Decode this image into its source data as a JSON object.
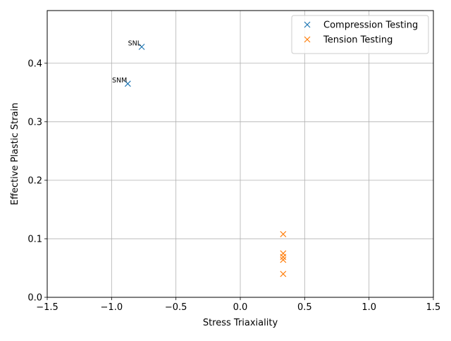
{
  "chart_data": {
    "type": "scatter",
    "xlabel": "Stress Triaxiality",
    "ylabel": "Effective Plastic Strain",
    "xlim": [
      -1.5,
      1.5
    ],
    "ylim": [
      0,
      0.49
    ],
    "xticks": [
      -1.5,
      -1.0,
      -0.5,
      0.0,
      0.5,
      1.0,
      1.5
    ],
    "xtick_labels": [
      "−1.5",
      "−1.0",
      "−0.5",
      "0.0",
      "0.5",
      "1.0",
      "1.5"
    ],
    "yticks": [
      0.0,
      0.1,
      0.2,
      0.3,
      0.4
    ],
    "ytick_labels": [
      "0.0",
      "0.1",
      "0.2",
      "0.3",
      "0.4"
    ],
    "grid": true,
    "legend_position": "top-right",
    "marker": "x",
    "series": [
      {
        "name": "Compression Testing",
        "color": "#1f77b4",
        "points": [
          {
            "x": -0.766,
            "y": 0.428,
            "label": "SNL"
          },
          {
            "x": -0.874,
            "y": 0.365,
            "label": "SNM"
          }
        ]
      },
      {
        "name": "Tension Testing",
        "color": "#ff7f0e",
        "points": [
          {
            "x": 0.333,
            "y": 0.108
          },
          {
            "x": 0.333,
            "y": 0.075
          },
          {
            "x": 0.333,
            "y": 0.069
          },
          {
            "x": 0.333,
            "y": 0.064
          },
          {
            "x": 0.333,
            "y": 0.04
          }
        ]
      }
    ]
  }
}
